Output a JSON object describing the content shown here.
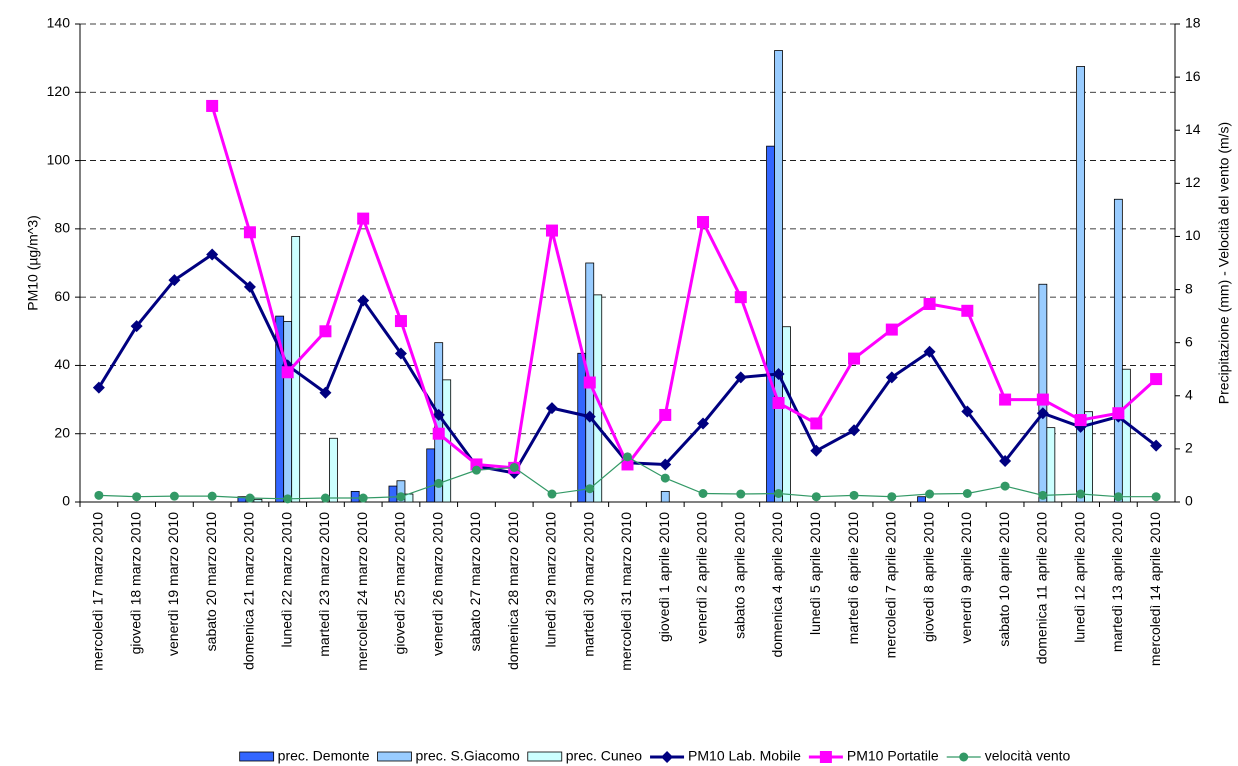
{
  "chart_data": {
    "type": "bar",
    "y_label": "PM10 (µg/m^3)",
    "y2_label": "Precipitazione (mm) - Velocità del vento (m/s)",
    "categories": [
      "mercoledì 17 marzo 2010",
      "giovedì 18 marzo 2010",
      "venerdì 19 marzo 2010",
      "sabato 20 marzo 2010",
      "domenica 21 marzo 2010",
      "lunedì 22 marzo 2010",
      "martedì 23 marzo 2010",
      "mercoledì 24 marzo 2010",
      "giovedì 25 marzo 2010",
      "venerdì 26 marzo 2010",
      "sabato 27 marzo 2010",
      "domenica 28 marzo 2010",
      "lunedì 29 marzo 2010",
      "martedì 30 marzo 2010",
      "mercoledì 31 marzo 2010",
      "giovedì 1 aprile 2010",
      "venerdì 2 aprile 2010",
      "sabato 3 aprile 2010",
      "domenica 4 aprile 2010",
      "lunedì 5 aprile 2010",
      "martedì 6 aprile 2010",
      "mercoledì 7 aprile 2010",
      "giovedì 8 aprile 2010",
      "venerdì 9 aprile 2010",
      "sabato 10 aprile 2010",
      "domenica 11 aprile 2010",
      "lunedì 12 aprile 2010",
      "martedì 13 aprile 2010",
      "mercoledì 14 aprile 2010"
    ],
    "series": [
      {
        "name": "prec. Demonte",
        "type": "bar",
        "axis": "y2",
        "color": "#3366ff",
        "values": [
          null,
          null,
          null,
          null,
          0.2,
          7.0,
          null,
          0.4,
          0.6,
          2.0,
          null,
          null,
          null,
          5.6,
          null,
          null,
          null,
          null,
          13.4,
          null,
          null,
          null,
          0.2,
          null,
          null,
          null,
          null,
          null,
          null
        ]
      },
      {
        "name": "prec. S.Giacomo",
        "type": "bar",
        "axis": "y2",
        "color": "#99ccff",
        "values": [
          null,
          null,
          null,
          null,
          0.2,
          6.8,
          null,
          null,
          0.8,
          6.0,
          null,
          null,
          null,
          9.0,
          null,
          0.4,
          null,
          null,
          17.0,
          null,
          null,
          null,
          null,
          null,
          null,
          8.2,
          16.4,
          11.4,
          null
        ]
      },
      {
        "name": "prec. Cuneo",
        "type": "bar",
        "axis": "y2",
        "color": "#ccffff",
        "values": [
          null,
          null,
          null,
          null,
          0.1,
          10.0,
          2.4,
          null,
          0.3,
          4.6,
          null,
          null,
          null,
          7.8,
          null,
          null,
          null,
          null,
          6.6,
          null,
          null,
          null,
          null,
          null,
          null,
          2.8,
          3.4,
          5.0,
          null
        ]
      },
      {
        "name": "PM10 Lab. Mobile",
        "type": "line",
        "marker": "diamond",
        "color": "#000080",
        "values": [
          33.5,
          51.5,
          65,
          72.5,
          63,
          40,
          32,
          59,
          43.5,
          25.5,
          10.5,
          8.5,
          27.5,
          25,
          11.5,
          11,
          23,
          36.5,
          37.5,
          15,
          21,
          36.5,
          44,
          26.5,
          12,
          26,
          22,
          25,
          16.5
        ]
      },
      {
        "name": "PM10 Portatile",
        "type": "line",
        "marker": "square",
        "color": "#ff00ff",
        "values": [
          null,
          null,
          null,
          116,
          79,
          38,
          50,
          83,
          53,
          20,
          11,
          10,
          79.5,
          35,
          11,
          25.5,
          82,
          60,
          29,
          23,
          42,
          50.5,
          58,
          56,
          30,
          30,
          24,
          26,
          36
        ]
      },
      {
        "name": "velocità vento",
        "type": "line",
        "axis": "y2",
        "marker": "circle",
        "color": "#339966",
        "values": [
          0.25,
          0.2,
          0.22,
          0.22,
          0.15,
          0.12,
          0.15,
          0.15,
          0.2,
          0.7,
          1.2,
          1.3,
          0.3,
          0.5,
          1.7,
          0.9,
          0.32,
          0.3,
          0.32,
          0.2,
          0.25,
          0.2,
          0.3,
          0.32,
          0.6,
          0.25,
          0.3,
          0.2,
          0.2
        ]
      }
    ],
    "ylim": [
      0,
      140
    ],
    "yticks": [
      0,
      20,
      40,
      60,
      80,
      100,
      120,
      140
    ],
    "y2lim": [
      0,
      18
    ],
    "y2ticks": [
      0,
      2,
      4,
      6,
      8,
      10,
      12,
      14,
      16,
      18
    ],
    "grid": true,
    "legend": "bottom"
  }
}
